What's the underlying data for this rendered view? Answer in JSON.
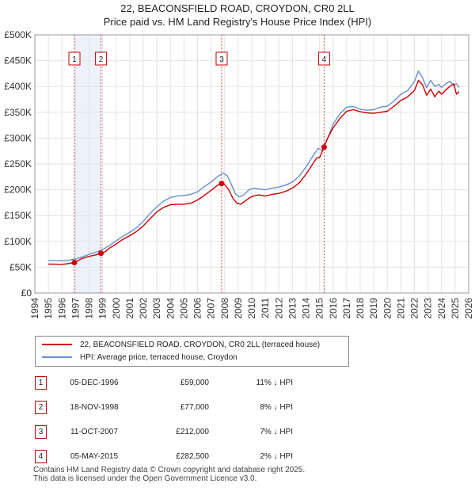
{
  "title": "22, BEACONSFIELD ROAD, CROYDON, CR0 2LL",
  "subtitle": "Price paid vs. HM Land Registry's House Price Index (HPI)",
  "colors": {
    "property": "#cc0000",
    "hpi": "#6a8fd0",
    "marker": "#cc0000",
    "sale_band": "#dde6f5"
  },
  "chart_data": {
    "type": "line",
    "x_range": [
      1994,
      2026
    ],
    "ylim": [
      0,
      500000
    ],
    "x_ticks": [
      "1994",
      "1995",
      "1996",
      "1997",
      "1998",
      "1999",
      "2000",
      "2001",
      "2002",
      "2003",
      "2004",
      "2005",
      "2006",
      "2007",
      "2008",
      "2009",
      "2010",
      "2011",
      "2012",
      "2013",
      "2014",
      "2015",
      "2016",
      "2017",
      "2018",
      "2019",
      "2020",
      "2021",
      "2022",
      "2023",
      "2024",
      "2025",
      "2026"
    ],
    "y_ticks": [
      {
        "value": 0,
        "label": "£0"
      },
      {
        "value": 50000,
        "label": "£50K"
      },
      {
        "value": 100000,
        "label": "£100K"
      },
      {
        "value": 150000,
        "label": "£150K"
      },
      {
        "value": 200000,
        "label": "£200K"
      },
      {
        "value": 250000,
        "label": "£250K"
      },
      {
        "value": 300000,
        "label": "£300K"
      },
      {
        "value": 350000,
        "label": "£350K"
      },
      {
        "value": 400000,
        "label": "£400K"
      },
      {
        "value": 450000,
        "label": "£450K"
      },
      {
        "value": 500000,
        "label": "£500K"
      }
    ],
    "series": [
      {
        "name": "22, BEACONSFIELD ROAD, CROYDON, CR0 2LL (terraced house)",
        "color": "#cc0000",
        "x": [
          1995.0,
          1995.5,
          1996.0,
          1996.5,
          1996.92,
          1997.2,
          1997.5,
          1998.0,
          1998.5,
          1998.88,
          1999.2,
          1999.5,
          2000.0,
          2000.5,
          2001.0,
          2001.5,
          2002.0,
          2002.5,
          2003.0,
          2003.5,
          2004.0,
          2004.5,
          2005.0,
          2005.5,
          2006.0,
          2006.5,
          2007.0,
          2007.5,
          2007.78,
          2008.0,
          2008.3,
          2008.6,
          2008.9,
          2009.2,
          2009.5,
          2010.0,
          2010.5,
          2011.0,
          2011.5,
          2012.0,
          2012.5,
          2013.0,
          2013.5,
          2014.0,
          2014.5,
          2014.8,
          2015.0,
          2015.34,
          2015.6,
          2016.0,
          2016.5,
          2017.0,
          2017.5,
          2018.0,
          2018.5,
          2019.0,
          2019.5,
          2020.0,
          2020.5,
          2021.0,
          2021.5,
          2022.0,
          2022.3,
          2022.6,
          2022.9,
          2023.2,
          2023.5,
          2023.8,
          2024.0,
          2024.3,
          2024.6,
          2024.9,
          2025.1,
          2025.3
        ],
        "y": [
          56000,
          55800,
          55500,
          57000,
          59000,
          63000,
          67000,
          71000,
          74000,
          77000,
          80000,
          87000,
          95000,
          104000,
          111000,
          119000,
          130000,
          144000,
          157000,
          166000,
          171000,
          172000,
          172000,
          174000,
          180000,
          189000,
          199000,
          209000,
          212000,
          210000,
          200000,
          184000,
          174000,
          172000,
          178000,
          187000,
          190000,
          188000,
          191000,
          193000,
          197000,
          203000,
          213000,
          230000,
          250000,
          262000,
          262000,
          282500,
          300000,
          320000,
          338000,
          352000,
          355000,
          351000,
          349000,
          348000,
          350000,
          352000,
          362000,
          373000,
          380000,
          392000,
          412000,
          403000,
          383000,
          395000,
          380000,
          391000,
          385000,
          393000,
          400000,
          405000,
          385000,
          390000
        ]
      },
      {
        "name": "HPI: Average price, terraced house, Croydon",
        "color": "#6a8fd0",
        "x": [
          1995.0,
          1995.5,
          1996.0,
          1996.5,
          1997.0,
          1997.5,
          1998.0,
          1998.5,
          1999.0,
          1999.5,
          2000.0,
          2000.5,
          2001.0,
          2001.5,
          2002.0,
          2002.5,
          2003.0,
          2003.5,
          2004.0,
          2004.5,
          2005.0,
          2005.5,
          2006.0,
          2006.5,
          2007.0,
          2007.5,
          2007.9,
          2008.2,
          2008.5,
          2008.8,
          2009.1,
          2009.4,
          2009.8,
          2010.2,
          2010.6,
          2011.0,
          2011.5,
          2012.0,
          2012.5,
          2013.0,
          2013.5,
          2014.0,
          2014.5,
          2014.9,
          2015.2,
          2015.6,
          2016.0,
          2016.5,
          2017.0,
          2017.5,
          2018.0,
          2018.5,
          2019.0,
          2019.5,
          2020.0,
          2020.5,
          2021.0,
          2021.5,
          2022.0,
          2022.3,
          2022.6,
          2022.9,
          2023.2,
          2023.5,
          2023.8,
          2024.0,
          2024.3,
          2024.6,
          2024.9,
          2025.1,
          2025.3
        ],
        "y": [
          63000,
          62500,
          62500,
          63500,
          66000,
          70000,
          75000,
          79000,
          84000,
          92000,
          101000,
          110000,
          118000,
          126000,
          139000,
          154000,
          167000,
          178000,
          185000,
          188000,
          189000,
          191000,
          196000,
          206000,
          215000,
          226000,
          232000,
          227000,
          210000,
          192000,
          186000,
          190000,
          200000,
          203000,
          201000,
          200000,
          203000,
          205000,
          209000,
          215000,
          226000,
          244000,
          265000,
          280000,
          276000,
          300000,
          327000,
          347000,
          360000,
          361000,
          356000,
          354000,
          355000,
          360000,
          362000,
          372000,
          385000,
          392000,
          410000,
          430000,
          417000,
          398000,
          412000,
          400000,
          404000,
          398000,
          405000,
          410000,
          402000,
          405000,
          398000
        ]
      }
    ],
    "sales": [
      {
        "n": "1",
        "year": 1996.92,
        "price": 59000
      },
      {
        "n": "2",
        "year": 1998.88,
        "price": 77000
      },
      {
        "n": "3",
        "year": 2007.78,
        "price": 212000
      },
      {
        "n": "4",
        "year": 2015.34,
        "price": 282500
      }
    ]
  },
  "legend": {
    "property_label": "22, BEACONSFIELD ROAD, CROYDON, CR0 2LL (terraced house)",
    "hpi_label": "HPI: Average price, terraced house, Croydon"
  },
  "transactions": [
    {
      "num": "1",
      "date": "05-DEC-1996",
      "price": "£59,000",
      "hpi": "11% ↓ HPI"
    },
    {
      "num": "2",
      "date": "18-NOV-1998",
      "price": "£77,000",
      "hpi": "8% ↓ HPI"
    },
    {
      "num": "3",
      "date": "11-OCT-2007",
      "price": "£212,000",
      "hpi": "7% ↓ HPI"
    },
    {
      "num": "4",
      "date": "05-MAY-2015",
      "price": "£282,500",
      "hpi": "2% ↓ HPI"
    }
  ],
  "footer": {
    "line1": "Contains HM Land Registry data © Crown copyright and database right 2025.",
    "line2": "This data is licensed under the Open Government Licence v3.0."
  }
}
